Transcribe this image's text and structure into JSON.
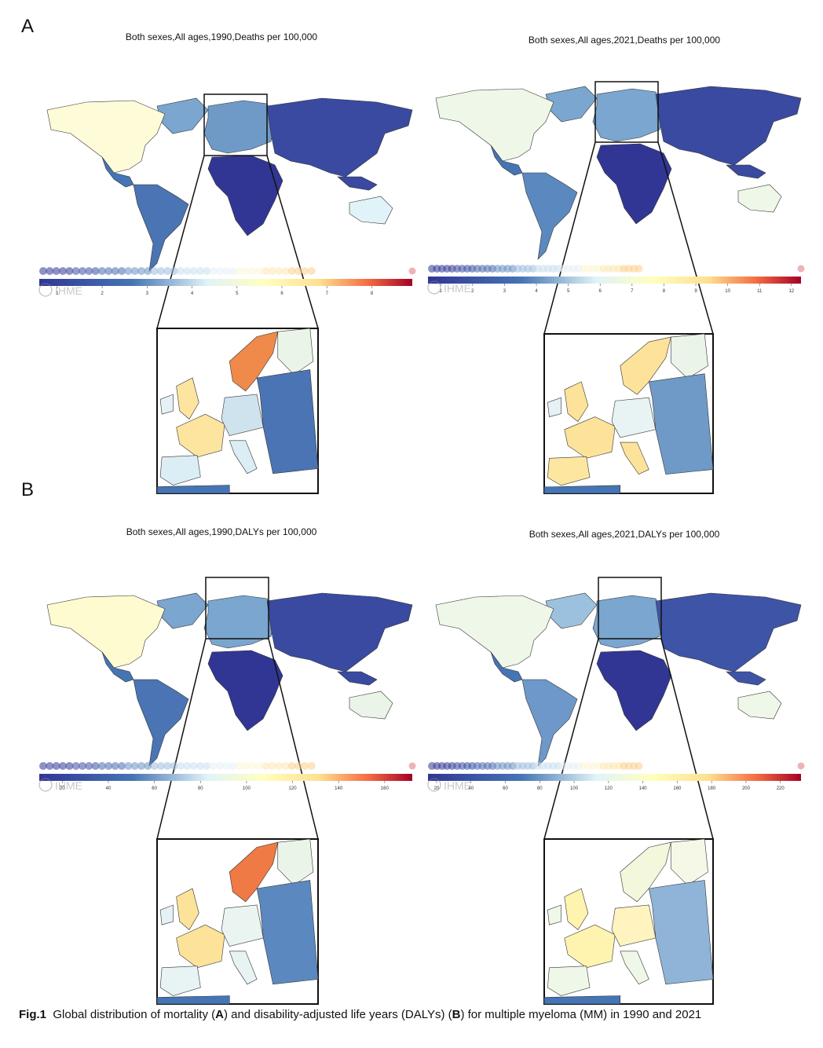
{
  "panels": [
    {
      "letter": "A"
    },
    {
      "letter": "B"
    }
  ],
  "maps": [
    {
      "title": "Both sexes,All ages,1990,Deaths per 100,000",
      "scale_ticks": [
        "1",
        "2",
        "3",
        "4",
        "5",
        "6",
        "7",
        "8"
      ],
      "logo": "IHME",
      "scale_range": [
        0.6,
        8.9
      ]
    },
    {
      "title": "Both sexes,All ages,2021,Deaths per 100,000",
      "scale_ticks": [
        "1",
        "2",
        "3",
        "4",
        "5",
        "6",
        "7",
        "8",
        "9",
        "10",
        "11",
        "12"
      ],
      "logo": "IHME",
      "scale_range": [
        0.6,
        12.3
      ]
    },
    {
      "title": "Both sexes,All ages,1990,DALYs per 100,000",
      "scale_ticks": [
        "20",
        "40",
        "60",
        "80",
        "100",
        "120",
        "140",
        "160"
      ],
      "logo": "IHME",
      "scale_range": [
        10,
        172
      ]
    },
    {
      "title": "Both sexes,All ages,2021,DALYs per 100,000",
      "scale_ticks": [
        "20",
        "40",
        "60",
        "80",
        "100",
        "120",
        "140",
        "160",
        "180",
        "200",
        "220"
      ],
      "logo": "IHME",
      "scale_range": [
        15,
        232
      ]
    }
  ],
  "caption": {
    "fig_label": "Fig.1",
    "text_1": "Global distribution of mortality (",
    "bold_a": "A",
    "text_2": ") and disability-adjusted life years (DALYs) (",
    "bold_b": "B",
    "text_3": ") for multiple myeloma (MM) in 1990 and 2021"
  },
  "colors": {
    "low": "#313695",
    "mid_low": "#4575b4",
    "mid": "#abd9e9",
    "pale": "#e0f3f8",
    "yellow": "#fee090",
    "orange": "#f46d43",
    "high": "#a50026"
  }
}
